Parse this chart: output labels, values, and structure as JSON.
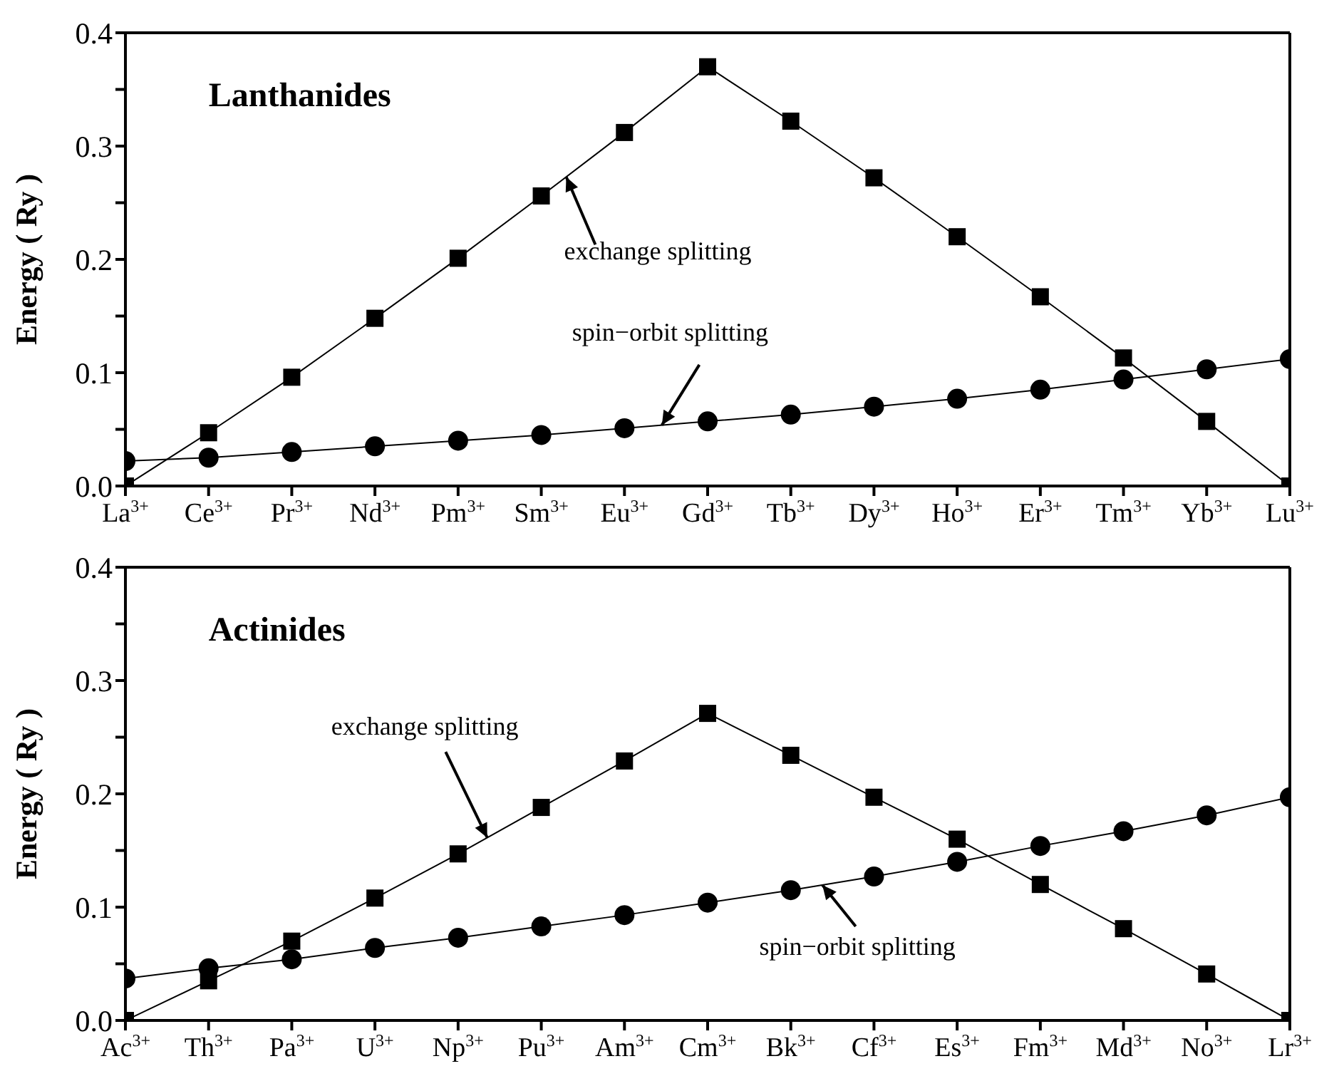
{
  "chart_data": [
    {
      "type": "line",
      "title": "Lanthanides",
      "ylabel": "Energy ( Ry )",
      "categories": [
        "La$^{3+}$",
        "Ce$^{3+}$",
        "Pr$^{3+}$",
        "Nd$^{3+}$",
        "Pm$^{3+}$",
        "Sm$^{3+}$",
        "Eu$^{3+}$",
        "Gd$^{3+}$",
        "Tb$^{3+}$",
        "Dy$^{3+}$",
        "Ho$^{3+}$",
        "Er$^{3+}$",
        "Tm$^{3+}$",
        "Yb$^{3+}$",
        "Lu$^{3+}$"
      ],
      "ylim": [
        0,
        0.4
      ],
      "yticks": [
        {
          "value": 0,
          "label": "0.0"
        },
        {
          "value": 0.05,
          "label": null
        },
        {
          "value": 0.1,
          "label": "0.1"
        },
        {
          "value": 0.15,
          "label": null
        },
        {
          "value": 0.2,
          "label": "0.2"
        },
        {
          "value": 0.25,
          "label": null
        },
        {
          "value": 0.3,
          "label": "0.3"
        },
        {
          "value": 0.35,
          "label": null
        },
        {
          "value": 0.4,
          "label": "0.4"
        }
      ],
      "line_style": "solid",
      "series": [
        {
          "name": "exchange splitting",
          "color": "#000000",
          "marker": "square",
          "values": [
            0,
            0.047,
            0.096,
            0.148,
            0.201,
            0.256,
            0.312,
            0.37,
            0.322,
            0.272,
            0.22,
            0.167,
            0.113,
            0.057,
            0
          ]
        },
        {
          "name": "spin−orbit splitting",
          "color": "#000000",
          "marker": "circle",
          "values": [
            0.022,
            0.025,
            0.03,
            0.035,
            0.04,
            0.045,
            0.051,
            0.057,
            0.063,
            0.07,
            0.077,
            0.085,
            0.094,
            0.103,
            0.112
          ]
        }
      ]
    },
    {
      "type": "line",
      "title": "Actinides",
      "ylabel": "Energy ( Ry )",
      "categories": [
        "Ac$^{3+}$",
        "Th$^{3+}$",
        "Pa$^{3+}$",
        "U$^{3+}$",
        "Np$^{3+}$",
        "Pu$^{3+}$",
        "Am$^{3+}$",
        "Cm$^{3+}$",
        "Bk$^{3+}$",
        "Cf$^{3+}$",
        "Es$^{3+}$",
        "Fm$^{3+}$",
        "Md$^{3+}$",
        "No$^{3+}$",
        "Lr$^{3+}$"
      ],
      "ylim": [
        0,
        0.4
      ],
      "yticks": [
        {
          "value": 0,
          "label": "0.0"
        },
        {
          "value": 0.05,
          "label": null
        },
        {
          "value": 0.1,
          "label": "0.1"
        },
        {
          "value": 0.15,
          "label": null
        },
        {
          "value": 0.2,
          "label": "0.2"
        },
        {
          "value": 0.25,
          "label": null
        },
        {
          "value": 0.3,
          "label": "0.3"
        },
        {
          "value": 0.35,
          "label": null
        },
        {
          "value": 0.4,
          "label": "0.4"
        }
      ],
      "line_style": "solid",
      "series": [
        {
          "name": "exchange splitting",
          "color": "#000000",
          "marker": "square",
          "values": [
            0,
            0.035,
            0.07,
            0.108,
            0.147,
            0.188,
            0.229,
            0.271,
            0.234,
            0.197,
            0.16,
            0.12,
            0.081,
            0.041,
            0
          ]
        },
        {
          "name": "spin−orbit splitting",
          "color": "#000000",
          "marker": "circle",
          "values": [
            0.037,
            0.046,
            0.054,
            0.064,
            0.073,
            0.083,
            0.093,
            0.104,
            0.115,
            0.127,
            0.14,
            0.154,
            0.167,
            0.181,
            0.197
          ]
        }
      ]
    }
  ]
}
